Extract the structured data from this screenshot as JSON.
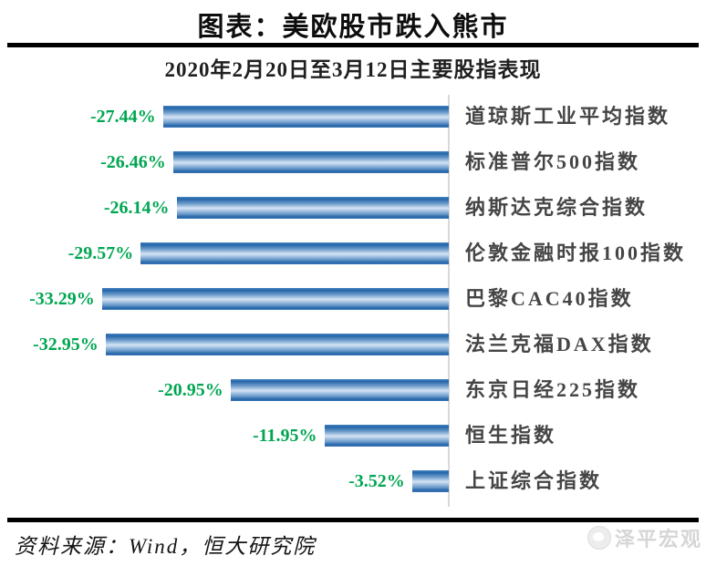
{
  "header": {
    "title": "图表：美欧股市跌入熊市"
  },
  "footer": {
    "source": "资料来源：Wind，恒大研究院",
    "watermark": "泽平宏观"
  },
  "colors": {
    "bar_blue_dark": "#2465a9",
    "bar_blue_light": "#d7e4f3",
    "value_green": "#00a651",
    "label_gray": "#454545",
    "axis_gray": "#d9d9d9",
    "rule_black": "#000000",
    "watermark_gray": "#d6d6d6"
  },
  "chart_data": {
    "type": "bar",
    "orientation": "horizontal",
    "title": "图表：美欧股市跌入熊市",
    "subtitle": "2020年2月20日至3月12日主要股指表现",
    "unit": "%",
    "xlim": [
      -35,
      0
    ],
    "grid": false,
    "legend": "none",
    "categories": [
      "道琼斯工业平均指数",
      "标准普尔500指数",
      "纳斯达克综合指数",
      "伦敦金融时报100指数",
      "巴黎CAC40指数",
      "法兰克福DAX指数",
      "东京日经225指数",
      "恒生指数",
      "上证综合指数"
    ],
    "values": [
      -27.44,
      -26.46,
      -26.14,
      -29.57,
      -33.29,
      -32.95,
      -20.95,
      -11.95,
      -3.52
    ],
    "value_labels": [
      "-27.44%",
      "-26.46%",
      "-26.14%",
      "-29.57%",
      "-33.29%",
      "-32.95%",
      "-20.95%",
      "-11.95%",
      "-3.52%"
    ]
  }
}
